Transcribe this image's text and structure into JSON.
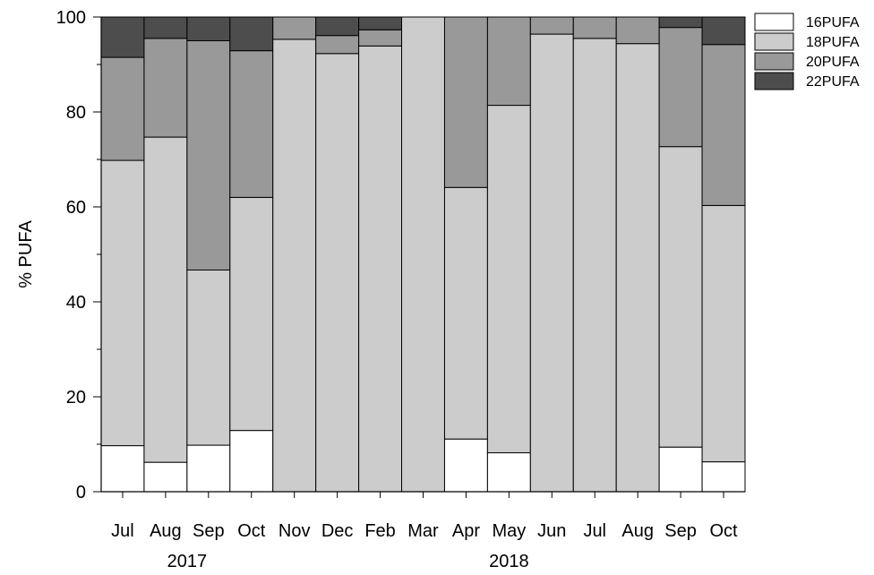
{
  "chart_data": {
    "type": "bar",
    "stacked": true,
    "categories": [
      "Jul",
      "Aug",
      "Sep",
      "Oct",
      "Nov",
      "Dec",
      "Feb",
      "Mar",
      "Apr",
      "May",
      "Jun",
      "Jul",
      "Aug",
      "Sep",
      "Oct"
    ],
    "year_groups": [
      {
        "label": "2017",
        "from": 0,
        "to": 3
      },
      {
        "label": "2018",
        "from": 4,
        "to": 14
      }
    ],
    "series": [
      {
        "name": "16PUFA",
        "color": "#ffffff",
        "values": [
          9.7,
          6.2,
          9.8,
          12.9,
          0,
          0,
          0,
          0,
          11.1,
          8.2,
          0,
          0,
          0,
          9.4,
          6.3
        ]
      },
      {
        "name": "18PUFA",
        "color": "#cccccc",
        "values": [
          60.1,
          68.5,
          36.9,
          49.1,
          95.3,
          92.3,
          93.9,
          100,
          53.0,
          73.2,
          96.4,
          95.5,
          94.4,
          63.3,
          54.0
        ]
      },
      {
        "name": "20PUFA",
        "color": "#999999",
        "values": [
          21.7,
          20.8,
          48.3,
          30.9,
          4.7,
          3.8,
          3.4,
          0,
          35.9,
          18.6,
          3.6,
          4.5,
          5.6,
          25.1,
          33.9
        ]
      },
      {
        "name": "22PUFA",
        "color": "#4d4d4d",
        "values": [
          8.5,
          4.5,
          5.0,
          7.1,
          0,
          3.9,
          2.7,
          0,
          0,
          0,
          0,
          0,
          0,
          2.2,
          5.8
        ]
      }
    ],
    "xlabel": "",
    "ylabel": "% PUFA",
    "ylim": [
      0,
      100
    ],
    "yticks": [
      0,
      20,
      40,
      60,
      80,
      100
    ],
    "grid": false,
    "legend_position": "top-right"
  }
}
